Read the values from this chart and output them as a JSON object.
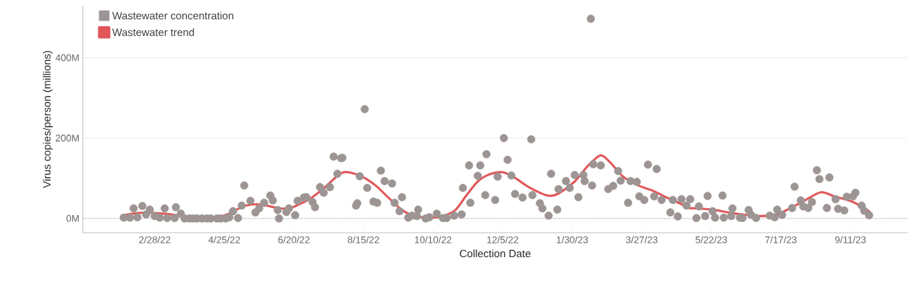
{
  "chart_data": {
    "type": "scatter",
    "xlabel": "Collection Date",
    "ylabel": "Virus copies/person (millions)",
    "xlim": [
      "2022-01-01",
      "2023-10-27"
    ],
    "ylim": [
      -36,
      530
    ],
    "xticks": [
      {
        "value": "2022-02-28",
        "label": "2/28/22"
      },
      {
        "value": "2022-04-25",
        "label": "4/25/22"
      },
      {
        "value": "2022-06-20",
        "label": "6/20/22"
      },
      {
        "value": "2022-08-15",
        "label": "8/15/22"
      },
      {
        "value": "2022-10-10",
        "label": "10/10/22"
      },
      {
        "value": "2022-12-05",
        "label": "12/5/22"
      },
      {
        "value": "2023-01-30",
        "label": "1/30/23"
      },
      {
        "value": "2023-03-27",
        "label": "3/27/23"
      },
      {
        "value": "2023-05-22",
        "label": "5/22/23"
      },
      {
        "value": "2023-07-17",
        "label": "7/17/23"
      },
      {
        "value": "2023-09-11",
        "label": "9/11/23"
      }
    ],
    "yticks": [
      {
        "value": 0,
        "label": "0M"
      },
      {
        "value": 200,
        "label": "200M"
      },
      {
        "value": 400,
        "label": "400M"
      }
    ],
    "grid": "y",
    "legend": "top left",
    "marker": "circle",
    "ref_lines": [
      {
        "axis": "y",
        "value": 0,
        "color": "#bbbbbb",
        "line_style": "dotted"
      }
    ],
    "series": [
      {
        "name": "Wastewater concentration",
        "color": "#9d9593",
        "x": [
          "2022-02-03",
          "2022-02-08",
          "2022-02-11",
          "2022-02-14",
          "2022-02-18",
          "2022-02-21",
          "2022-02-24",
          "2022-02-28",
          "2022-03-04",
          "2022-03-08",
          "2022-03-10",
          "2022-03-16",
          "2022-03-17",
          "2022-03-21",
          "2022-03-24",
          "2022-03-28",
          "2022-03-31",
          "2022-04-03",
          "2022-04-07",
          "2022-04-11",
          "2022-04-14",
          "2022-04-19",
          "2022-04-22",
          "2022-04-26",
          "2022-04-29",
          "2022-05-02",
          "2022-05-06",
          "2022-05-09",
          "2022-05-11",
          "2022-05-16",
          "2022-05-20",
          "2022-05-23",
          "2022-05-27",
          "2022-06-01",
          "2022-06-03",
          "2022-06-07",
          "2022-06-08",
          "2022-06-14",
          "2022-06-16",
          "2022-06-21",
          "2022-06-23",
          "2022-06-28",
          "2022-06-30",
          "2022-07-05",
          "2022-07-07",
          "2022-07-11",
          "2022-07-14",
          "2022-07-19",
          "2022-07-22",
          "2022-07-25",
          "2022-07-28",
          "2022-07-29",
          "2022-08-09",
          "2022-08-10",
          "2022-08-12",
          "2022-08-16",
          "2022-08-18",
          "2022-08-23",
          "2022-08-26",
          "2022-08-29",
          "2022-09-01",
          "2022-09-07",
          "2022-09-09",
          "2022-09-13",
          "2022-09-15",
          "2022-09-20",
          "2022-09-23",
          "2022-09-27",
          "2022-09-28",
          "2022-10-04",
          "2022-10-07",
          "2022-10-13",
          "2022-10-18",
          "2022-10-21",
          "2022-10-27",
          "2022-11-02",
          "2022-11-03",
          "2022-11-08",
          "2022-11-09",
          "2022-11-15",
          "2022-11-17",
          "2022-11-21",
          "2022-11-22",
          "2022-11-29",
          "2022-12-01",
          "2022-12-06",
          "2022-12-09",
          "2022-12-12",
          "2022-12-15",
          "2022-12-21",
          "2022-12-28",
          "2022-12-29",
          "2023-01-04",
          "2023-01-06",
          "2023-01-11",
          "2023-01-13",
          "2023-01-18",
          "2023-01-19",
          "2023-01-25",
          "2023-01-28",
          "2023-02-01",
          "2023-02-04",
          "2023-02-08",
          "2023-02-09",
          "2023-02-14",
          "2023-02-15",
          "2023-02-16",
          "2023-02-22",
          "2023-02-28",
          "2023-03-04",
          "2023-03-08",
          "2023-03-10",
          "2023-03-16",
          "2023-03-18",
          "2023-03-23",
          "2023-03-25",
          "2023-03-29",
          "2023-04-01",
          "2023-04-06",
          "2023-04-08",
          "2023-04-12",
          "2023-04-19",
          "2023-04-21",
          "2023-04-25",
          "2023-04-28",
          "2023-05-02",
          "2023-05-05",
          "2023-05-10",
          "2023-05-12",
          "2023-05-17",
          "2023-05-19",
          "2023-05-23",
          "2023-05-25",
          "2023-05-31",
          "2023-06-01",
          "2023-06-07",
          "2023-06-08",
          "2023-06-14",
          "2023-06-16",
          "2023-06-21",
          "2023-06-23",
          "2023-06-27",
          "2023-07-08",
          "2023-07-12",
          "2023-07-14",
          "2023-07-18",
          "2023-07-26",
          "2023-07-28",
          "2023-08-02",
          "2023-08-04",
          "2023-08-08",
          "2023-08-11",
          "2023-08-15",
          "2023-08-17",
          "2023-08-23",
          "2023-08-25",
          "2023-08-30",
          "2023-09-01",
          "2023-09-06",
          "2023-09-08",
          "2023-09-13",
          "2023-09-15",
          "2023-09-20",
          "2023-09-22",
          "2023-09-26"
        ],
        "values": [
          2,
          2,
          25,
          3,
          31,
          10,
          22,
          6,
          2,
          25,
          1,
          1,
          28,
          12,
          0,
          0,
          0,
          0,
          0,
          0,
          0,
          0,
          0,
          0,
          3,
          18,
          1,
          32,
          82,
          44,
          15,
          25,
          39,
          57,
          45,
          21,
          0,
          16,
          25,
          8,
          44,
          52,
          53,
          41,
          28,
          78,
          64,
          78,
          154,
          111,
          150,
          151,
          32,
          38,
          105,
          272,
          76,
          42,
          39,
          119,
          93,
          87,
          39,
          18,
          53,
          2,
          7,
          6,
          22,
          0,
          3,
          12,
          1,
          1,
          7,
          10,
          76,
          132,
          39,
          106,
          132,
          58,
          160,
          46,
          104,
          200,
          146,
          107,
          61,
          52,
          197,
          58,
          38,
          25,
          7,
          111,
          22,
          73,
          93,
          76,
          108,
          53,
          108,
          93,
          497,
          82,
          135,
          132,
          73,
          81,
          118,
          94,
          39,
          93,
          91,
          55,
          46,
          134,
          55,
          123,
          46,
          15,
          46,
          5,
          48,
          32,
          48,
          1,
          30,
          6,
          56,
          18,
          2,
          57,
          2,
          6,
          25,
          2,
          1,
          21,
          9,
          1,
          7,
          3,
          22,
          9,
          26,
          79,
          45,
          30,
          26,
          41,
          120,
          98,
          26,
          102,
          48,
          24,
          20,
          54,
          55,
          64,
          32,
          19,
          8
        ]
      },
      {
        "name": "Wastewater trend",
        "type": "line",
        "color": "#e15759",
        "marker": "none",
        "x": [
          "2022-02-03",
          "2022-02-18",
          "2022-03-07",
          "2022-03-20",
          "2022-04-07",
          "2022-04-22",
          "2022-05-01",
          "2022-05-10",
          "2022-05-20",
          "2022-05-29",
          "2022-06-07",
          "2022-06-16",
          "2022-06-22",
          "2022-07-03",
          "2022-07-14",
          "2022-07-29",
          "2022-08-11",
          "2022-08-24",
          "2022-09-04",
          "2022-09-15",
          "2022-09-26",
          "2022-10-09",
          "2022-10-18",
          "2022-10-28",
          "2022-11-06",
          "2022-11-15",
          "2022-11-24",
          "2022-12-05",
          "2022-12-15",
          "2022-12-26",
          "2023-01-10",
          "2023-01-19",
          "2023-02-01",
          "2023-02-12",
          "2023-02-22",
          "2023-03-02",
          "2023-03-12",
          "2023-03-25",
          "2023-04-05",
          "2023-04-16",
          "2023-04-27",
          "2023-05-04",
          "2023-05-10",
          "2023-05-25",
          "2023-06-08",
          "2023-06-29",
          "2023-07-12",
          "2023-07-21",
          "2023-08-03",
          "2023-08-18",
          "2023-08-29",
          "2023-09-13",
          "2023-09-26"
        ],
        "values": [
          8,
          14,
          12,
          7,
          1,
          5,
          15,
          30,
          35,
          32,
          26,
          25,
          32,
          49,
          75,
          114,
          108,
          84,
          52,
          21,
          5,
          2,
          6,
          21,
          58,
          92,
          109,
          115,
          101,
          78,
          57,
          62,
          92,
          132,
          157,
          138,
          104,
          81,
          69,
          52,
          37,
          26,
          25,
          21,
          13,
          6,
          9,
          20,
          41,
          65,
          55,
          41,
          18
        ]
      }
    ]
  }
}
